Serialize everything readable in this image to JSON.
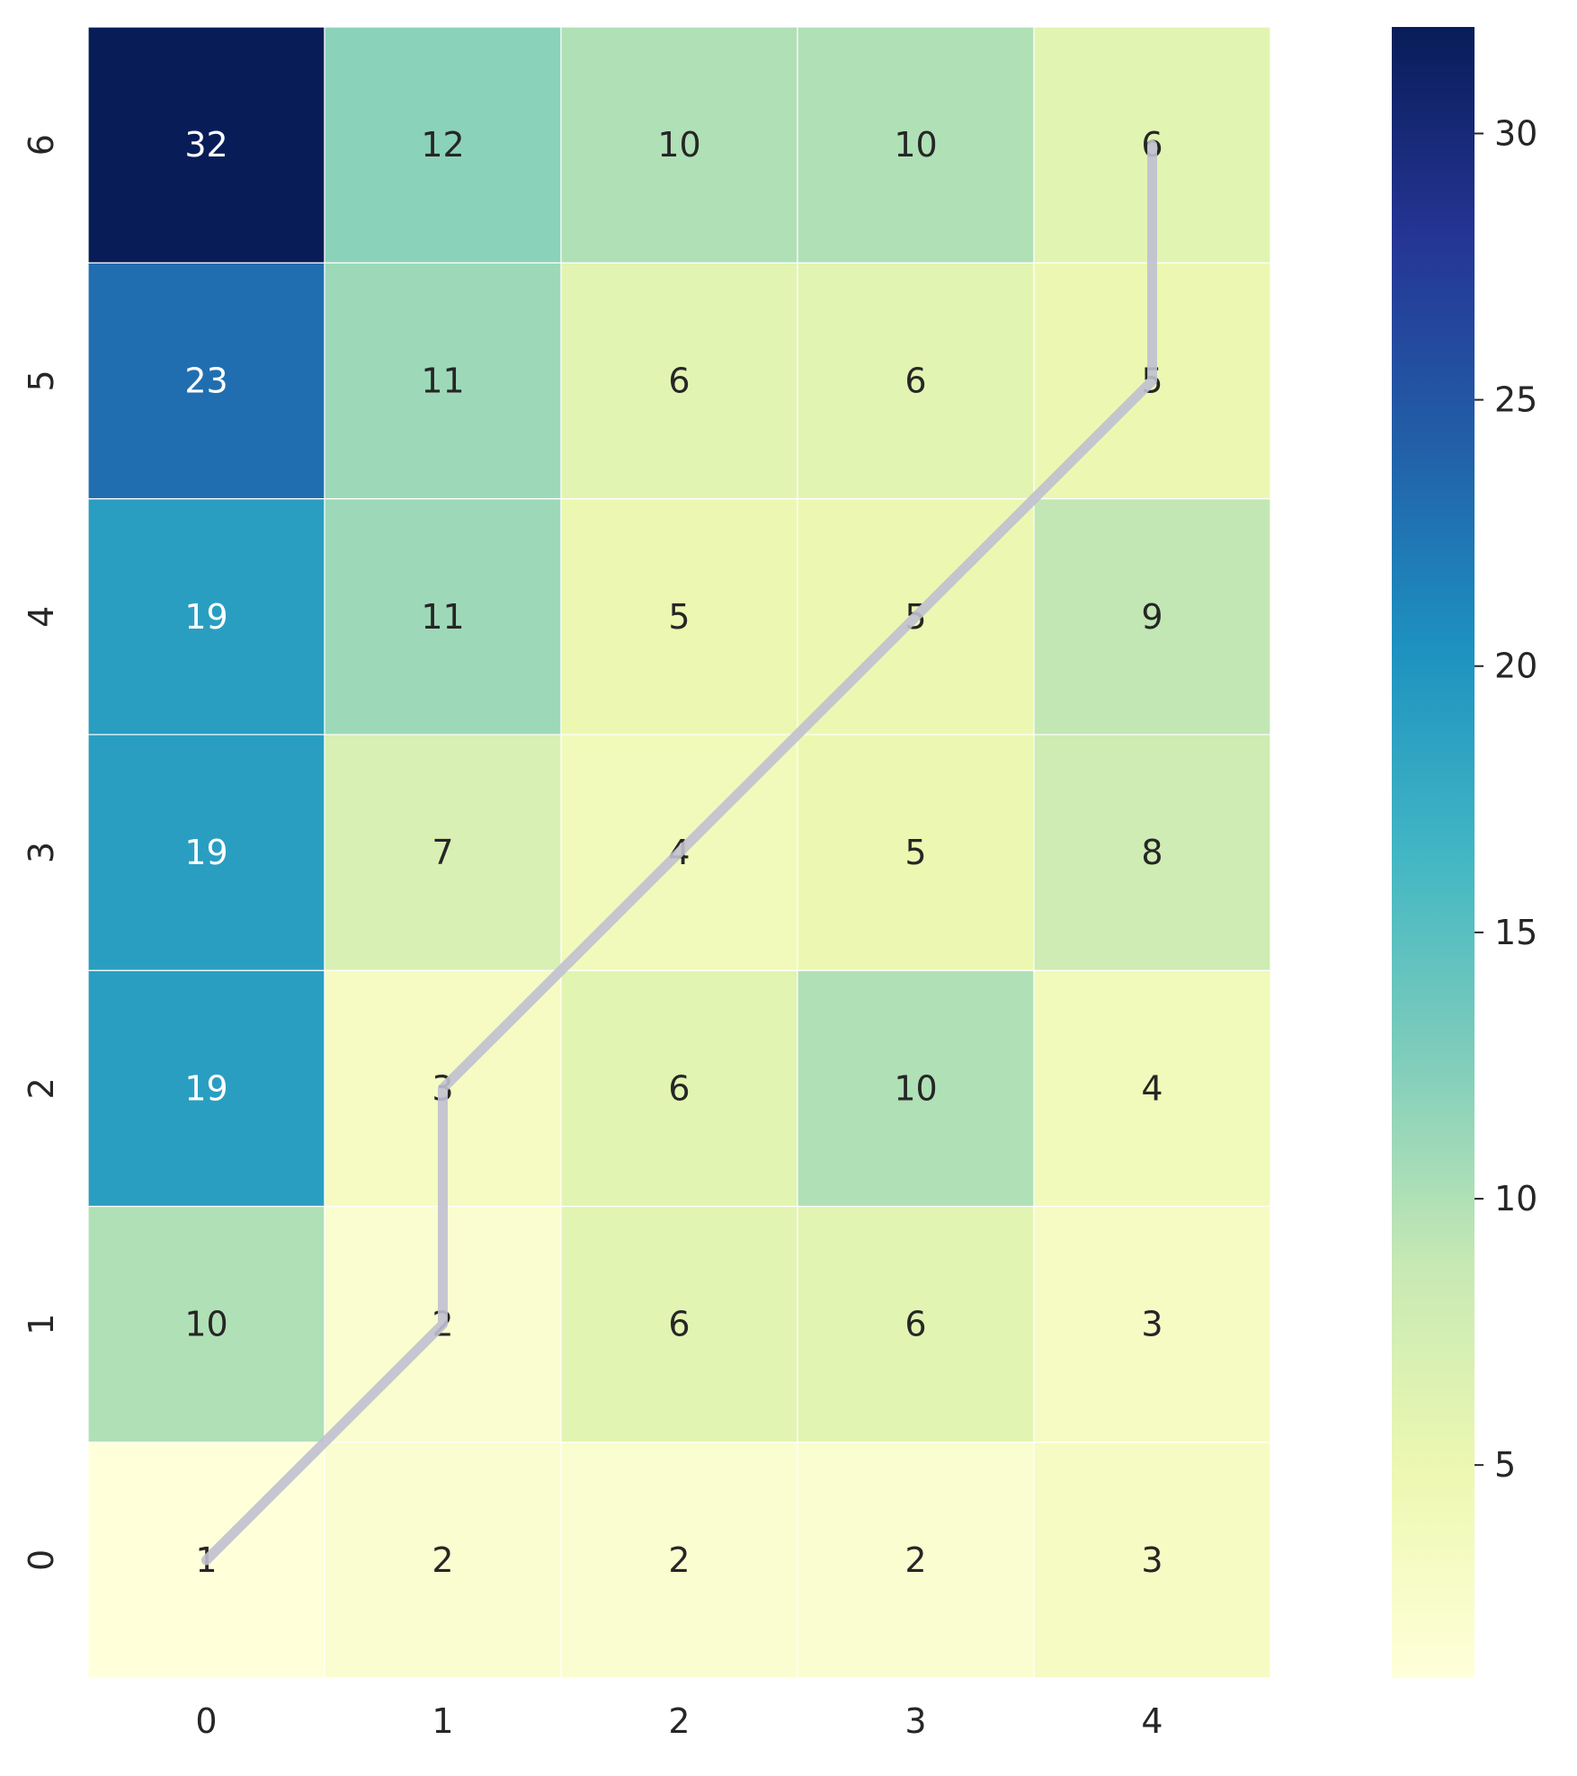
{
  "chart_data": {
    "type": "heatmap",
    "title": "",
    "xlabel": "",
    "ylabel": "",
    "x_categories": [
      "0",
      "1",
      "2",
      "3",
      "4"
    ],
    "y_categories": [
      "0",
      "1",
      "2",
      "3",
      "4",
      "5",
      "6"
    ],
    "values": [
      [
        1,
        2,
        2,
        2,
        3
      ],
      [
        10,
        2,
        6,
        6,
        3
      ],
      [
        19,
        3,
        6,
        10,
        4
      ],
      [
        19,
        7,
        4,
        5,
        8
      ],
      [
        19,
        11,
        5,
        5,
        9
      ],
      [
        23,
        11,
        6,
        6,
        5
      ],
      [
        32,
        12,
        10,
        10,
        6
      ]
    ],
    "colorscale": "YlGnBu",
    "colorbar": {
      "range": [
        1,
        32
      ],
      "ticks": [
        5,
        10,
        15,
        20,
        25,
        30
      ]
    },
    "path": [
      {
        "x": 0,
        "y": 0
      },
      {
        "x": 1,
        "y": 1
      },
      {
        "x": 1,
        "y": 2
      },
      {
        "x": 2,
        "y": 3
      },
      {
        "x": 3,
        "y": 4
      },
      {
        "x": 4,
        "y": 5
      },
      {
        "x": 4,
        "y": 6
      }
    ],
    "path_color": "#c0c0d0",
    "grid": false,
    "legend": "right"
  }
}
